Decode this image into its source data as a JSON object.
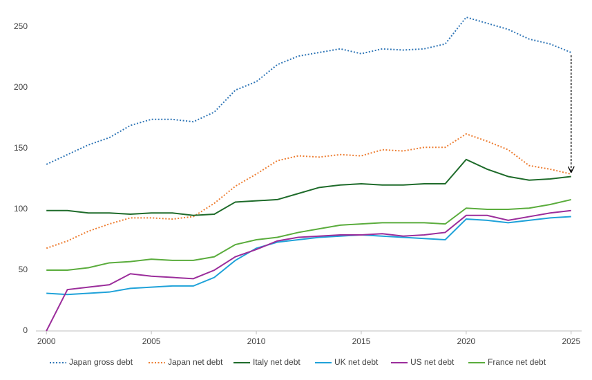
{
  "chart_data": {
    "type": "line",
    "x": [
      2000,
      2001,
      2002,
      2003,
      2004,
      2005,
      2006,
      2007,
      2008,
      2009,
      2010,
      2011,
      2012,
      2013,
      2014,
      2015,
      2016,
      2017,
      2018,
      2019,
      2020,
      2021,
      2022,
      2023,
      2024,
      2025
    ],
    "xlim": [
      1999.5,
      2025.5
    ],
    "xticks": [
      2000,
      2005,
      2010,
      2015,
      2020,
      2025
    ],
    "ylim": [
      0,
      250
    ],
    "yticks": [
      0,
      50,
      100,
      150,
      200,
      250
    ],
    "grid": false,
    "legend": "bottom",
    "series": [
      {
        "name": "Japan gross debt",
        "color": "#2e75b6",
        "dash": "dotted",
        "values": [
          137,
          145,
          153,
          159,
          169,
          174,
          174,
          172,
          180,
          198,
          205,
          219,
          226,
          229,
          232,
          228,
          232,
          231,
          232,
          236,
          258,
          253,
          248,
          240,
          236,
          229
        ]
      },
      {
        "name": "Japan net debt",
        "color": "#ed7d31",
        "dash": "dotted",
        "values": [
          68,
          74,
          82,
          88,
          93,
          93,
          92,
          94,
          105,
          119,
          129,
          140,
          144,
          143,
          145,
          144,
          149,
          148,
          151,
          151,
          162,
          156,
          149,
          136,
          133,
          129
        ]
      },
      {
        "name": "Italy net debt",
        "color": "#1e6b2a",
        "dash": "solid",
        "values": [
          99,
          99,
          97,
          97,
          96,
          97,
          97,
          95,
          96,
          106,
          107,
          108,
          113,
          118,
          120,
          121,
          120,
          120,
          121,
          121,
          141,
          133,
          127,
          124,
          125,
          127
        ]
      },
      {
        "name": "UK net debt",
        "color": "#1fa2d9",
        "dash": "solid",
        "values": [
          31,
          30,
          31,
          32,
          35,
          36,
          37,
          37,
          44,
          58,
          68,
          73,
          75,
          77,
          78,
          79,
          78,
          77,
          76,
          75,
          92,
          91,
          89,
          91,
          93,
          94
        ]
      },
      {
        "name": "US net debt",
        "color": "#9b2d9b",
        "dash": "solid",
        "values": [
          0,
          34,
          36,
          38,
          47,
          45,
          44,
          43,
          50,
          61,
          67,
          74,
          77,
          78,
          79,
          79,
          80,
          78,
          79,
          81,
          95,
          95,
          91,
          94,
          97,
          99
        ]
      },
      {
        "name": "France net debt",
        "color": "#5aac3c",
        "dash": "solid",
        "values": [
          50,
          50,
          52,
          56,
          57,
          59,
          58,
          58,
          61,
          71,
          75,
          77,
          81,
          84,
          87,
          88,
          89,
          89,
          89,
          88,
          101,
          100,
          100,
          101,
          104,
          108
        ]
      }
    ]
  }
}
